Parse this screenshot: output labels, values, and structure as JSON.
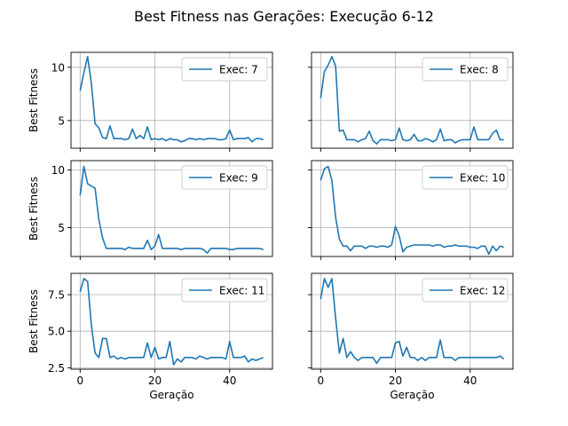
{
  "figure": {
    "title": "Best Fitness nas Gerações: Execução 6-12"
  },
  "colors": {
    "line": "#1f77b4",
    "grid": "#b0b0b0",
    "axis": "#000000",
    "legend_border": "#cccccc"
  },
  "chart_data": [
    {
      "type": "line",
      "legend": "Exec: 7",
      "legend_position": "top-right",
      "ylabel": "Best Fitness",
      "xlabel": "",
      "xlim": [
        -2.45,
        51.45
      ],
      "ylim": [
        2.4,
        11.4
      ],
      "xticks": [
        0,
        20,
        40
      ],
      "xtick_labels": [
        "",
        "",
        ""
      ],
      "yticks": [
        5,
        10
      ],
      "ytick_labels": [
        "5",
        "10"
      ],
      "grid": true,
      "x": [
        0,
        1,
        2,
        3,
        4,
        5,
        6,
        7,
        8,
        9,
        10,
        11,
        12,
        13,
        14,
        15,
        16,
        17,
        18,
        19,
        20,
        21,
        22,
        23,
        24,
        25,
        26,
        27,
        28,
        29,
        30,
        31,
        32,
        33,
        34,
        35,
        36,
        37,
        38,
        39,
        40,
        41,
        42,
        43,
        44,
        45,
        46,
        47,
        48,
        49
      ],
      "y": [
        7.8,
        9.5,
        11.0,
        8.5,
        4.7,
        4.3,
        3.4,
        3.3,
        4.5,
        3.3,
        3.3,
        3.3,
        3.2,
        3.3,
        4.2,
        3.3,
        3.6,
        3.3,
        4.4,
        3.2,
        3.3,
        3.2,
        3.3,
        3.1,
        3.3,
        3.2,
        3.2,
        3.0,
        3.1,
        3.3,
        3.3,
        3.2,
        3.3,
        3.2,
        3.3,
        3.3,
        3.3,
        3.2,
        3.2,
        3.3,
        4.1,
        3.2,
        3.3,
        3.3,
        3.3,
        3.4,
        3.0,
        3.3,
        3.3,
        3.2
      ]
    },
    {
      "type": "line",
      "legend": "Exec: 8",
      "legend_position": "top-right",
      "ylabel": "",
      "xlabel": "",
      "xlim": [
        -2.45,
        51.45
      ],
      "ylim": [
        2.4,
        11.4
      ],
      "xticks": [
        0,
        20,
        40
      ],
      "xtick_labels": [
        "",
        "",
        ""
      ],
      "yticks": [
        5,
        10
      ],
      "ytick_labels": [
        "",
        ""
      ],
      "grid": true,
      "x": [
        0,
        1,
        2,
        3,
        4,
        5,
        6,
        7,
        8,
        9,
        10,
        11,
        12,
        13,
        14,
        15,
        16,
        17,
        18,
        19,
        20,
        21,
        22,
        23,
        24,
        25,
        26,
        27,
        28,
        29,
        30,
        31,
        32,
        33,
        34,
        35,
        36,
        37,
        38,
        39,
        40,
        41,
        42,
        43,
        44,
        45,
        46,
        47,
        48,
        49
      ],
      "y": [
        7.1,
        9.6,
        10.2,
        11.0,
        10.1,
        4.0,
        4.1,
        3.2,
        3.2,
        3.2,
        3.0,
        3.2,
        3.3,
        4.0,
        3.1,
        2.8,
        3.2,
        3.2,
        3.2,
        3.1,
        3.2,
        4.3,
        3.2,
        3.1,
        3.2,
        3.7,
        3.1,
        3.1,
        3.3,
        3.2,
        3.0,
        3.2,
        4.2,
        3.1,
        3.2,
        3.2,
        2.9,
        3.1,
        3.2,
        3.2,
        3.2,
        4.4,
        3.2,
        3.2,
        3.2,
        3.2,
        3.8,
        4.1,
        3.2,
        3.2
      ]
    },
    {
      "type": "line",
      "legend": "Exec: 9",
      "legend_position": "top-right",
      "ylabel": "Best Fitness",
      "xlabel": "",
      "xlim": [
        -2.45,
        51.45
      ],
      "ylim": [
        2.5,
        10.8
      ],
      "xticks": [
        0,
        20,
        40
      ],
      "xtick_labels": [
        "",
        "",
        ""
      ],
      "yticks": [
        5,
        10
      ],
      "ytick_labels": [
        "5",
        "10"
      ],
      "grid": true,
      "x": [
        0,
        1,
        2,
        3,
        4,
        5,
        6,
        7,
        8,
        9,
        10,
        11,
        12,
        13,
        14,
        15,
        16,
        17,
        18,
        19,
        20,
        21,
        22,
        23,
        24,
        25,
        26,
        27,
        28,
        29,
        30,
        31,
        32,
        33,
        34,
        35,
        36,
        37,
        38,
        39,
        40,
        41,
        42,
        43,
        44,
        45,
        46,
        47,
        48,
        49
      ],
      "y": [
        7.8,
        10.3,
        8.8,
        8.6,
        8.4,
        5.7,
        4.1,
        3.2,
        3.2,
        3.2,
        3.2,
        3.2,
        3.1,
        3.3,
        3.2,
        3.2,
        3.2,
        3.2,
        3.9,
        3.1,
        3.4,
        4.4,
        3.2,
        3.2,
        3.2,
        3.2,
        3.2,
        3.1,
        3.2,
        3.2,
        3.2,
        3.2,
        3.2,
        3.1,
        2.8,
        3.2,
        3.2,
        3.2,
        3.2,
        3.2,
        3.1,
        3.1,
        3.2,
        3.2,
        3.2,
        3.2,
        3.2,
        3.2,
        3.2,
        3.1
      ]
    },
    {
      "type": "line",
      "legend": "Exec: 10",
      "legend_position": "top-right",
      "ylabel": "",
      "xlabel": "",
      "xlim": [
        -2.45,
        51.45
      ],
      "ylim": [
        2.5,
        10.8
      ],
      "xticks": [
        0,
        20,
        40
      ],
      "xtick_labels": [
        "",
        "",
        ""
      ],
      "yticks": [
        5,
        10
      ],
      "ytick_labels": [
        "",
        ""
      ],
      "grid": true,
      "x": [
        0,
        1,
        2,
        3,
        4,
        5,
        6,
        7,
        8,
        9,
        10,
        11,
        12,
        13,
        14,
        15,
        16,
        17,
        18,
        19,
        20,
        21,
        22,
        23,
        24,
        25,
        26,
        27,
        28,
        29,
        30,
        31,
        32,
        33,
        34,
        35,
        36,
        37,
        38,
        39,
        40,
        41,
        42,
        43,
        44,
        45,
        46,
        47,
        48,
        49
      ],
      "y": [
        9.1,
        10.1,
        10.3,
        9.1,
        5.9,
        4.0,
        3.4,
        3.4,
        3.0,
        3.4,
        3.4,
        3.4,
        3.2,
        3.4,
        3.4,
        3.3,
        3.4,
        3.4,
        3.3,
        3.5,
        5.1,
        4.3,
        2.9,
        3.3,
        3.4,
        3.5,
        3.5,
        3.5,
        3.5,
        3.5,
        3.4,
        3.5,
        3.5,
        3.3,
        3.4,
        3.4,
        3.5,
        3.4,
        3.4,
        3.4,
        3.3,
        3.3,
        3.2,
        3.4,
        3.4,
        2.7,
        3.4,
        3.0,
        3.4,
        3.3
      ]
    },
    {
      "type": "line",
      "legend": "Exec: 11",
      "legend_position": "top-right",
      "ylabel": "Best Fitness",
      "xlabel": "Geração",
      "xlim": [
        -2.45,
        51.45
      ],
      "ylim": [
        2.4,
        8.96
      ],
      "xticks": [
        0,
        20,
        40
      ],
      "xtick_labels": [
        "0",
        "20",
        "40"
      ],
      "yticks": [
        2.5,
        5.0,
        7.5
      ],
      "ytick_labels": [
        "2.5",
        "5.0",
        "7.5"
      ],
      "grid": true,
      "x": [
        0,
        1,
        2,
        3,
        4,
        5,
        6,
        7,
        8,
        9,
        10,
        11,
        12,
        13,
        14,
        15,
        16,
        17,
        18,
        19,
        20,
        21,
        22,
        23,
        24,
        25,
        26,
        27,
        28,
        29,
        30,
        31,
        32,
        33,
        34,
        35,
        36,
        37,
        38,
        39,
        40,
        41,
        42,
        43,
        44,
        45,
        46,
        47,
        48,
        49
      ],
      "y": [
        7.7,
        8.6,
        8.4,
        5.4,
        3.5,
        3.2,
        4.5,
        4.5,
        3.2,
        3.3,
        3.1,
        3.2,
        3.1,
        3.2,
        3.2,
        3.2,
        3.2,
        3.2,
        4.2,
        3.2,
        3.9,
        3.1,
        3.2,
        3.2,
        4.3,
        2.7,
        3.1,
        2.9,
        3.2,
        3.2,
        3.2,
        3.1,
        3.3,
        3.2,
        3.1,
        3.2,
        3.2,
        3.2,
        3.2,
        3.1,
        4.3,
        3.2,
        3.2,
        3.2,
        3.3,
        2.9,
        3.1,
        3.0,
        3.1,
        3.2
      ]
    },
    {
      "type": "line",
      "legend": "Exec: 12",
      "legend_position": "top-right",
      "ylabel": "",
      "xlabel": "Geração",
      "xlim": [
        -2.45,
        51.45
      ],
      "ylim": [
        2.4,
        8.96
      ],
      "xticks": [
        0,
        20,
        40
      ],
      "xtick_labels": [
        "0",
        "20",
        "40"
      ],
      "yticks": [
        2.5,
        5.0,
        7.5
      ],
      "ytick_labels": [
        "",
        "",
        ""
      ],
      "grid": true,
      "x": [
        0,
        1,
        2,
        3,
        4,
        5,
        6,
        7,
        8,
        9,
        10,
        11,
        12,
        13,
        14,
        15,
        16,
        17,
        18,
        19,
        20,
        21,
        22,
        23,
        24,
        25,
        26,
        27,
        28,
        29,
        30,
        31,
        32,
        33,
        34,
        35,
        36,
        37,
        38,
        39,
        40,
        41,
        42,
        43,
        44,
        45,
        46,
        47,
        48,
        49
      ],
      "y": [
        7.2,
        8.6,
        8.0,
        8.6,
        5.9,
        3.5,
        4.5,
        3.2,
        3.6,
        3.2,
        3.0,
        3.2,
        3.2,
        3.2,
        3.2,
        2.8,
        3.2,
        3.2,
        3.2,
        3.2,
        4.2,
        4.3,
        3.3,
        3.9,
        3.2,
        3.2,
        3.0,
        3.2,
        3.0,
        3.2,
        3.2,
        3.2,
        4.4,
        3.2,
        3.2,
        3.2,
        3.0,
        3.2,
        3.2,
        3.2,
        3.2,
        3.2,
        3.2,
        3.2,
        3.2,
        3.2,
        3.2,
        3.2,
        3.3,
        3.1
      ]
    }
  ]
}
